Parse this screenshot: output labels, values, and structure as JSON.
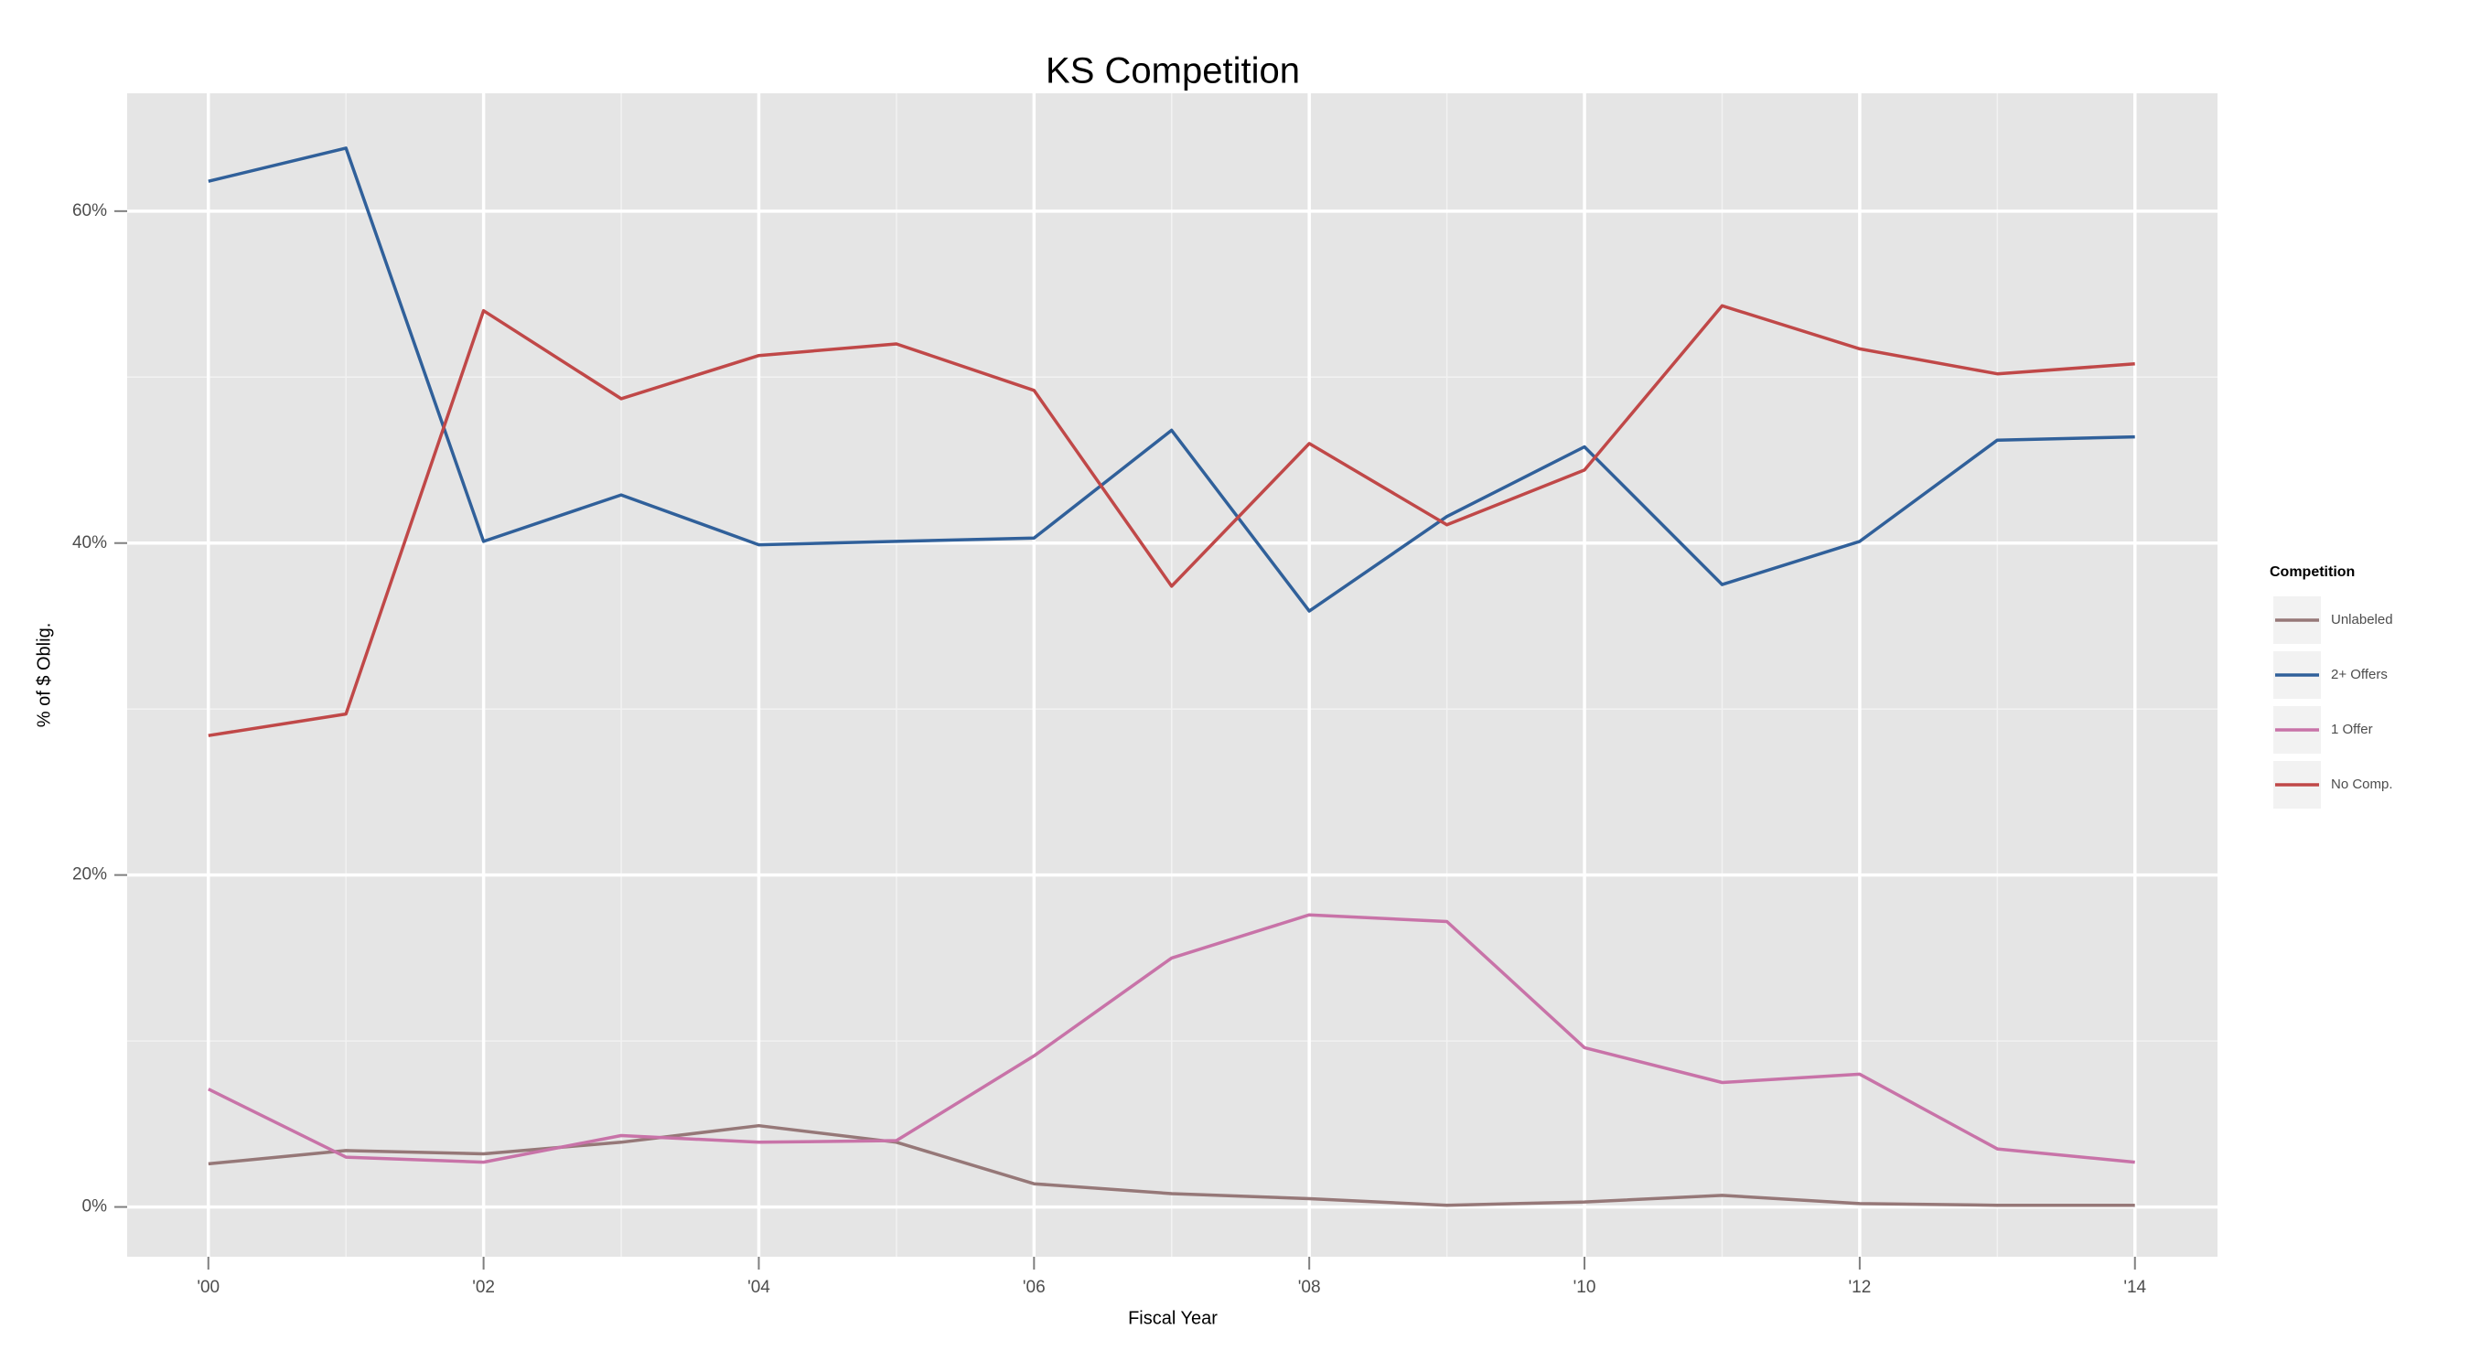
{
  "chart_data": {
    "type": "line",
    "title": "KS Competition",
    "x_label": "Fiscal Year",
    "y_label": "% of $ Oblig.",
    "legend_title": "Competition",
    "legend_position": "right",
    "grid": true,
    "x": [
      2000,
      2001,
      2002,
      2003,
      2004,
      2005,
      2006,
      2007,
      2008,
      2009,
      2010,
      2011,
      2012,
      2013,
      2014
    ],
    "xlim": [
      1999.41,
      2014.6
    ],
    "xticks": [
      {
        "value": 2000,
        "label": "'00"
      },
      {
        "value": 2002,
        "label": "'02"
      },
      {
        "value": 2004,
        "label": "'04"
      },
      {
        "value": 2006,
        "label": "'06"
      },
      {
        "value": 2008,
        "label": "'08"
      },
      {
        "value": 2010,
        "label": "'10"
      },
      {
        "value": 2012,
        "label": "'12"
      },
      {
        "value": 2014,
        "label": "'14"
      }
    ],
    "ylim": [
      -3.0,
      67.1
    ],
    "yticks": [
      {
        "value": 0,
        "label": "0%"
      },
      {
        "value": 20,
        "label": "20%"
      },
      {
        "value": 40,
        "label": "40%"
      },
      {
        "value": 60,
        "label": "60%"
      }
    ],
    "series": [
      {
        "name": "Unlabeled",
        "color": "#967878",
        "values": [
          2.6,
          3.4,
          3.2,
          3.9,
          4.9,
          3.9,
          1.4,
          0.8,
          0.5,
          0.1,
          0.3,
          0.7,
          0.2,
          0.1,
          0.1
        ]
      },
      {
        "name": "2+ Offers",
        "color": "#30609a",
        "values": [
          61.8,
          63.8,
          40.1,
          42.9,
          39.9,
          40.1,
          40.3,
          46.8,
          35.9,
          41.6,
          45.8,
          37.5,
          40.1,
          46.2,
          46.4
        ]
      },
      {
        "name": "1 Offer",
        "color": "#c873a8",
        "values": [
          7.1,
          3.0,
          2.7,
          4.3,
          3.9,
          4.0,
          9.1,
          15.0,
          17.6,
          17.2,
          9.6,
          7.5,
          8.0,
          3.5,
          2.7
        ]
      },
      {
        "name": "No Comp.",
        "color": "#c04848",
        "values": [
          28.4,
          29.7,
          54.0,
          48.7,
          51.3,
          52.0,
          49.2,
          37.4,
          46.0,
          41.1,
          44.4,
          54.3,
          51.7,
          50.2,
          50.8
        ]
      }
    ]
  }
}
